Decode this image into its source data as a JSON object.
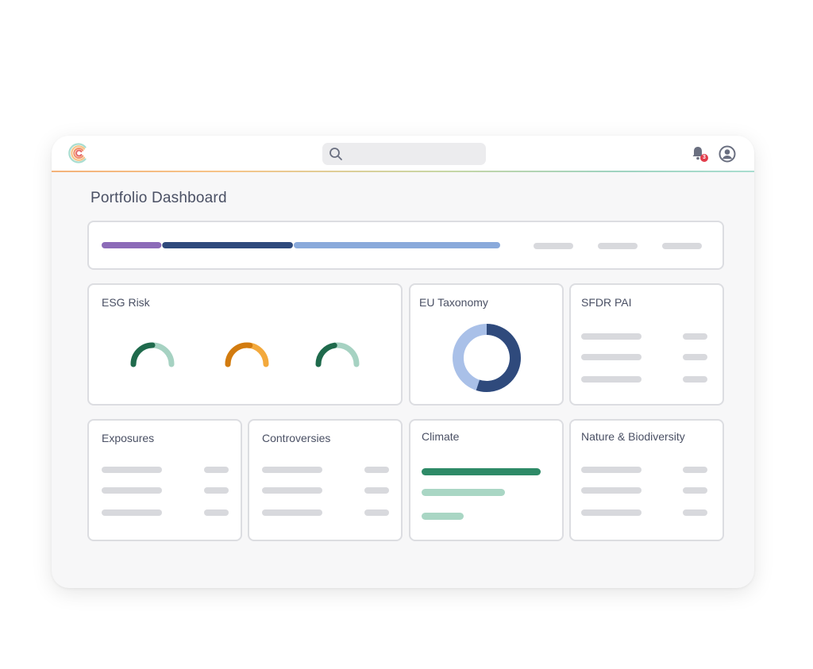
{
  "header": {
    "logo_icon": "circular-c-logo",
    "search": {
      "icon": "search-icon",
      "placeholder": ""
    },
    "notifications": {
      "icon": "bell-icon",
      "count": "3"
    },
    "profile": {
      "icon": "user-avatar-icon"
    }
  },
  "page": {
    "title": "Portfolio Dashboard"
  },
  "progress_summary": {
    "segments": [
      {
        "color": "#8c6bb8",
        "share": 0.15
      },
      {
        "color": "#2f4a7c",
        "share": 0.33
      },
      {
        "color": "#8aaadb",
        "share": 0.52
      }
    ]
  },
  "cards": {
    "esg_risk": {
      "title": "ESG Risk",
      "gauges": [
        {
          "level": 0.5,
          "fill": "#1f6a4c",
          "track": "#a6d2c2"
        },
        {
          "level": 0.55,
          "fill": "#d27b0f",
          "track": "#f3a93c"
        },
        {
          "level": 0.45,
          "fill": "#1f6a4c",
          "track": "#a6d2c2"
        }
      ]
    },
    "eu_taxonomy": {
      "title": "EU Taxonomy",
      "donut_share": 0.55,
      "colors": [
        "#2f4a7c",
        "#a9c0e8"
      ]
    },
    "sfdr_pai": {
      "title": "SFDR PAI"
    },
    "exposures": {
      "title": "Exposures"
    },
    "controversies": {
      "title": "Controversies"
    },
    "climate": {
      "title": "Climate",
      "bars": [
        {
          "value": 1.0,
          "color": "#2e8a67"
        },
        {
          "value": 0.7,
          "color": "#a9d6c4"
        },
        {
          "value": 0.35,
          "color": "#a9d6c4"
        }
      ]
    },
    "nature_biodiversity": {
      "title": "Nature & Biodiversity"
    }
  }
}
